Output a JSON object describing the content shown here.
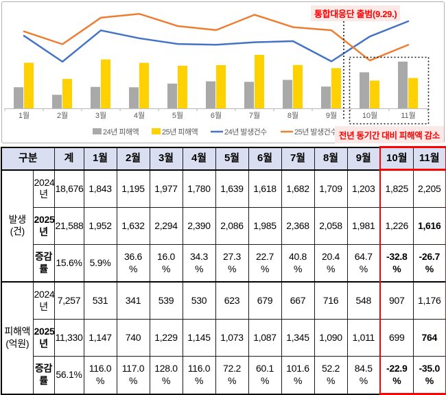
{
  "chart": {
    "callout": "통합대응단 출범(9.29.)",
    "highlight_label": "전년 동기간 대비 피해액 감소"
  },
  "chart_data": {
    "type": "combo",
    "categories": [
      "1월",
      "2월",
      "3월",
      "4월",
      "5월",
      "6월",
      "7월",
      "8월",
      "9월",
      "10월",
      "11월"
    ],
    "series": [
      {
        "name": "24년 피해액",
        "type": "bar",
        "color": "#a9a9a9",
        "values": [
          531,
          341,
          539,
          530,
          623,
          679,
          667,
          716,
          548,
          907,
          1176
        ]
      },
      {
        "name": "25년 피해액",
        "type": "bar",
        "color": "#ffd100",
        "values": [
          1147,
          740,
          1229,
          1145,
          1073,
          1087,
          1345,
          1090,
          1011,
          699,
          764
        ]
      },
      {
        "name": "24년 발생건수",
        "type": "line",
        "color": "#4472c4",
        "values": [
          1843,
          1195,
          1977,
          1780,
          1639,
          1618,
          1682,
          1709,
          1203,
          1825,
          2205
        ]
      },
      {
        "name": "25년 발생건수",
        "type": "line",
        "color": "#ed7d31",
        "values": [
          1952,
          1632,
          2294,
          2390,
          2086,
          1985,
          2368,
          2058,
          1981,
          1226,
          1616
        ]
      }
    ],
    "legend_position": "bottom",
    "grid": false,
    "axes_visible": false,
    "annotation": "통합대응단 출범(9.29.)",
    "annotation_event_x": "9월 말(9.29.)",
    "highlight_months": [
      "10월",
      "11월"
    ],
    "highlight_note": "전년 동기간 대비 피해액 감소"
  },
  "table": {
    "corner_header": "구분",
    "header": [
      "계",
      "1월",
      "2월",
      "3월",
      "4월",
      "5월",
      "6월",
      "7월",
      "8월",
      "9월",
      "10월",
      "11월"
    ],
    "highlight_columns": [
      "10월",
      "11월"
    ],
    "groups": [
      {
        "label": "발생\n(건)",
        "rows": [
          {
            "label": "2024\n년",
            "bold_label": false,
            "bold_cells": [],
            "values": [
              "18,676",
              "1,843",
              "1,195",
              "1,977",
              "1,780",
              "1,639",
              "1,618",
              "1,682",
              "1,709",
              "1,203",
              "1,825",
              "2,205"
            ]
          },
          {
            "label": "2025\n년",
            "bold_label": true,
            "bold_cells": [
              11
            ],
            "values": [
              "21,588",
              "1,952",
              "1,632",
              "2,294",
              "2,390",
              "2,086",
              "1,985",
              "2,368",
              "2,058",
              "1,981",
              "1,226",
              "1,616"
            ]
          },
          {
            "label": "증감률",
            "bold_label": true,
            "bold_cells": [],
            "values": [
              "15.6%",
              "5.9%",
              "36.6\n%",
              "16.0\n%",
              "34.3\n%",
              "27.3\n%",
              "22.7\n%",
              "40.8\n%",
              "20.4\n%",
              "64.7\n%",
              "-32.8\n%",
              "-26.7\n%"
            ]
          }
        ]
      },
      {
        "label": "피해액\n(억원)",
        "rows": [
          {
            "label": "2024\n년",
            "bold_label": false,
            "bold_cells": [],
            "values": [
              "7,257",
              "531",
              "341",
              "539",
              "530",
              "623",
              "679",
              "667",
              "716",
              "548",
              "907",
              "1,176"
            ]
          },
          {
            "label": "2025\n년",
            "bold_label": true,
            "bold_cells": [
              11
            ],
            "values": [
              "11,330",
              "1,147",
              "740",
              "1,229",
              "1,145",
              "1,073",
              "1,087",
              "1,345",
              "1,090",
              "1,011",
              "699",
              "764"
            ]
          },
          {
            "label": "증감률",
            "bold_label": true,
            "bold_cells": [],
            "values": [
              "56.1%",
              "116.0\n%",
              "117.0\n%",
              "128.0\n%",
              "116.0\n%",
              "72.2\n%",
              "60.1\n%",
              "101.6\n%",
              "52.2\n%",
              "84.5\n%",
              "-22.9\n%",
              "-35.0\n%"
            ]
          }
        ]
      }
    ]
  },
  "colors": {
    "bar_2024": "#a9a9a9",
    "bar_2025": "#ffd100",
    "line_2024": "#4472c4",
    "line_2025": "#ed7d31",
    "highlight_red": "#ff0000",
    "negative_blue": "#0000e6",
    "header_bg": "#d9def0",
    "axis_gray": "#bfbfbf",
    "label_gray": "#595959"
  }
}
